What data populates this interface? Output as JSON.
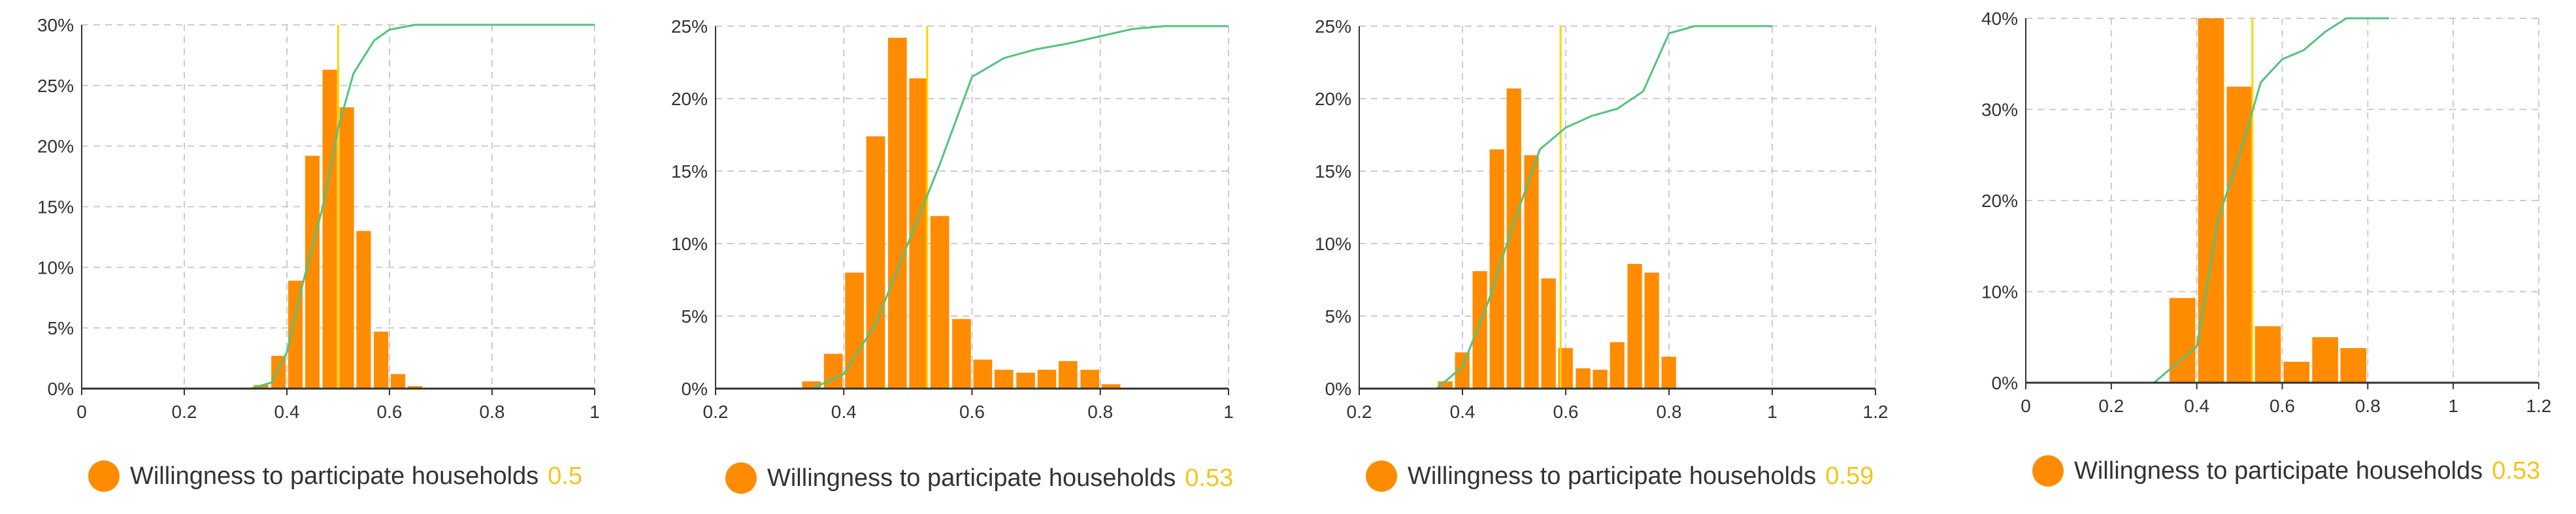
{
  "colors": {
    "bar": "#ff8c00",
    "cdf": "#52c47e",
    "mean_line": "#ffd400",
    "legend_value": "#f5c518",
    "grid": "#cccccc",
    "axis": "#333333"
  },
  "chart_data": [
    {
      "type": "bar",
      "series_label": "Willingness to participate households",
      "mean_value": "0.5",
      "mean": 0.5,
      "xlim": [
        0,
        1
      ],
      "ylim": [
        0,
        30
      ],
      "x_ticks": [
        "0",
        "0.2",
        "0.4",
        "0.6",
        "0.8",
        "1"
      ],
      "y_ticks": [
        "0%",
        "5%",
        "10%",
        "15%",
        "20%",
        "25%",
        "30%"
      ],
      "bin_width": 0.0333,
      "bars": [
        {
          "x": 0.333,
          "value": 0.3
        },
        {
          "x": 0.367,
          "value": 2.7
        },
        {
          "x": 0.4,
          "value": 8.9
        },
        {
          "x": 0.433,
          "value": 19.2
        },
        {
          "x": 0.467,
          "value": 26.3
        },
        {
          "x": 0.5,
          "value": 23.2
        },
        {
          "x": 0.533,
          "value": 13.0
        },
        {
          "x": 0.567,
          "value": 4.7
        },
        {
          "x": 0.6,
          "value": 1.2
        },
        {
          "x": 0.633,
          "value": 0.2
        }
      ],
      "cdf": [
        {
          "x": 0,
          "y": 0
        },
        {
          "x": 0.33,
          "y": 0
        },
        {
          "x": 0.37,
          "y": 0.5
        },
        {
          "x": 0.4,
          "y": 3.0
        },
        {
          "x": 0.43,
          "y": 8.5
        },
        {
          "x": 0.47,
          "y": 15.0
        },
        {
          "x": 0.5,
          "y": 21.5
        },
        {
          "x": 0.53,
          "y": 26.0
        },
        {
          "x": 0.57,
          "y": 28.7
        },
        {
          "x": 0.6,
          "y": 29.6
        },
        {
          "x": 0.65,
          "y": 30
        },
        {
          "x": 1,
          "y": 30
        }
      ]
    },
    {
      "type": "bar",
      "series_label": "Willingness to participate households",
      "mean_value": "0.53",
      "mean": 0.53,
      "xlim": [
        0.2,
        1
      ],
      "ylim": [
        0,
        25
      ],
      "x_ticks": [
        "0.2",
        "0.4",
        "0.6",
        "0.8",
        "1"
      ],
      "y_ticks": [
        "0%",
        "5%",
        "10%",
        "15%",
        "20%",
        "25%"
      ],
      "bin_width": 0.0333,
      "bars": [
        {
          "x": 0.333,
          "value": 0.5
        },
        {
          "x": 0.367,
          "value": 2.4
        },
        {
          "x": 0.4,
          "value": 8.0
        },
        {
          "x": 0.433,
          "value": 17.4
        },
        {
          "x": 0.467,
          "value": 24.2
        },
        {
          "x": 0.5,
          "value": 21.4
        },
        {
          "x": 0.533,
          "value": 11.9
        },
        {
          "x": 0.567,
          "value": 4.8
        },
        {
          "x": 0.6,
          "value": 2.0
        },
        {
          "x": 0.633,
          "value": 1.3
        },
        {
          "x": 0.667,
          "value": 1.1
        },
        {
          "x": 0.7,
          "value": 1.3
        },
        {
          "x": 0.733,
          "value": 1.9
        },
        {
          "x": 0.767,
          "value": 1.3
        },
        {
          "x": 0.8,
          "value": 0.3
        }
      ],
      "cdf": [
        {
          "x": 0.2,
          "y": 0
        },
        {
          "x": 0.35,
          "y": 0
        },
        {
          "x": 0.4,
          "y": 1.0
        },
        {
          "x": 0.45,
          "y": 4.5
        },
        {
          "x": 0.5,
          "y": 10.0
        },
        {
          "x": 0.55,
          "y": 15.5
        },
        {
          "x": 0.6,
          "y": 21.5
        },
        {
          "x": 0.65,
          "y": 22.8
        },
        {
          "x": 0.7,
          "y": 23.4
        },
        {
          "x": 0.75,
          "y": 23.8
        },
        {
          "x": 0.8,
          "y": 24.3
        },
        {
          "x": 0.85,
          "y": 24.8
        },
        {
          "x": 0.9,
          "y": 25
        },
        {
          "x": 1,
          "y": 25
        }
      ]
    },
    {
      "type": "bar",
      "series_label": "Willingness to participate households",
      "mean_value": "0.59",
      "mean": 0.59,
      "xlim": [
        0.2,
        1.2
      ],
      "ylim": [
        0,
        25
      ],
      "x_ticks": [
        "0.2",
        "0.4",
        "0.6",
        "0.8",
        "1",
        "1.2"
      ],
      "y_ticks": [
        "0%",
        "5%",
        "10%",
        "15%",
        "20%",
        "25%"
      ],
      "bin_width": 0.0333,
      "bars": [
        {
          "x": 0.35,
          "value": 0.5
        },
        {
          "x": 0.383,
          "value": 2.5
        },
        {
          "x": 0.417,
          "value": 8.1
        },
        {
          "x": 0.45,
          "value": 16.5
        },
        {
          "x": 0.483,
          "value": 20.7
        },
        {
          "x": 0.517,
          "value": 16.1
        },
        {
          "x": 0.55,
          "value": 7.6
        },
        {
          "x": 0.583,
          "value": 2.8
        },
        {
          "x": 0.617,
          "value": 1.4
        },
        {
          "x": 0.65,
          "value": 1.3
        },
        {
          "x": 0.683,
          "value": 3.2
        },
        {
          "x": 0.717,
          "value": 8.6
        },
        {
          "x": 0.75,
          "value": 8.0
        },
        {
          "x": 0.783,
          "value": 2.2
        }
      ],
      "cdf": [
        {
          "x": 0.2,
          "y": 0
        },
        {
          "x": 0.35,
          "y": 0
        },
        {
          "x": 0.4,
          "y": 1.5
        },
        {
          "x": 0.45,
          "y": 6.0
        },
        {
          "x": 0.5,
          "y": 11.5
        },
        {
          "x": 0.55,
          "y": 16.5
        },
        {
          "x": 0.6,
          "y": 18.0
        },
        {
          "x": 0.65,
          "y": 18.8
        },
        {
          "x": 0.7,
          "y": 19.3
        },
        {
          "x": 0.75,
          "y": 20.5
        },
        {
          "x": 0.8,
          "y": 24.5
        },
        {
          "x": 0.85,
          "y": 25
        },
        {
          "x": 1.0,
          "y": 25
        }
      ]
    },
    {
      "type": "bar",
      "series_label": "Willingness to participate households",
      "mean_value": "0.53",
      "mean": 0.53,
      "xlim": [
        0,
        1.2
      ],
      "ylim": [
        0,
        40
      ],
      "x_ticks": [
        "0",
        "0.2",
        "0.4",
        "0.6",
        "0.8",
        "1",
        "1.2"
      ],
      "y_ticks": [
        "0%",
        "10%",
        "20%",
        "30%",
        "40%"
      ],
      "bin_width": 0.0667,
      "bars": [
        {
          "x": 0.333,
          "value": 9.3
        },
        {
          "x": 0.4,
          "value": 40.0
        },
        {
          "x": 0.467,
          "value": 32.5
        },
        {
          "x": 0.533,
          "value": 6.2
        },
        {
          "x": 0.6,
          "value": 2.3
        },
        {
          "x": 0.667,
          "value": 5.0
        },
        {
          "x": 0.733,
          "value": 3.8
        }
      ],
      "cdf": [
        {
          "x": 0,
          "y": 0
        },
        {
          "x": 0.3,
          "y": 0
        },
        {
          "x": 0.4,
          "y": 4.0
        },
        {
          "x": 0.45,
          "y": 18.0
        },
        {
          "x": 0.5,
          "y": 25.0
        },
        {
          "x": 0.55,
          "y": 33.0
        },
        {
          "x": 0.6,
          "y": 35.5
        },
        {
          "x": 0.65,
          "y": 36.5
        },
        {
          "x": 0.7,
          "y": 38.5
        },
        {
          "x": 0.75,
          "y": 40.0
        },
        {
          "x": 0.85,
          "y": 40.0
        }
      ]
    }
  ]
}
